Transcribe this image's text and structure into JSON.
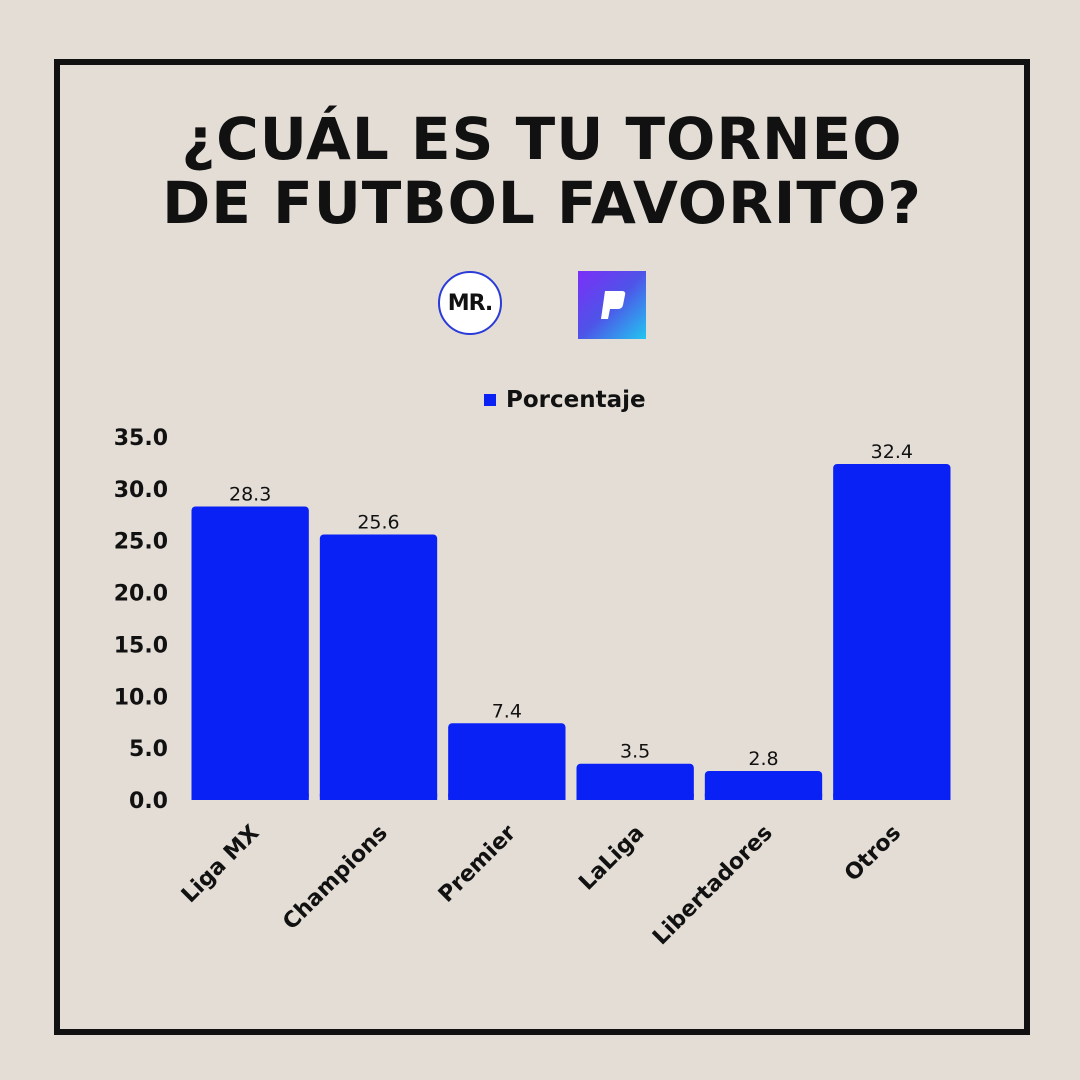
{
  "title_lines": [
    "¿CUÁL ES TU TORNEO",
    "DE FUTBOL FAVORITO?"
  ],
  "logos": {
    "mr_text": "MR."
  },
  "colors": {
    "bar": "#0a21f5",
    "background": "#e3ddd6",
    "frame": "#111111",
    "text": "#111111"
  },
  "chart_data": {
    "type": "bar",
    "title": "¿CUÁL ES TU TORNEO DE FUTBOL FAVORITO?",
    "categories": [
      "Liga MX",
      "Champions",
      "Premier",
      "LaLiga",
      "Libertadores",
      "Otros"
    ],
    "series": [
      {
        "name": "Porcentaje",
        "values": [
          28.3,
          25.6,
          7.4,
          3.5,
          2.8,
          32.4
        ]
      }
    ],
    "data_labels": [
      "28.3",
      "25.6",
      "7.4",
      "3.5",
      "2.8",
      "32.4"
    ],
    "y_ticks": [
      "0.0",
      "5.0",
      "10.0",
      "15.0",
      "20.0",
      "25.0",
      "30.0",
      "35.0"
    ],
    "ylim": [
      0,
      35
    ],
    "xlabel": "",
    "ylabel": "",
    "grid": false,
    "legend_position": "top-center"
  }
}
